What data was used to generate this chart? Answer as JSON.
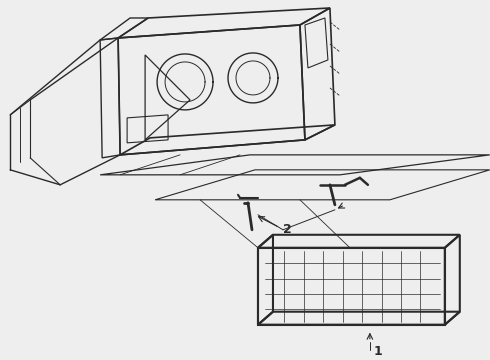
{
  "background_color": "#eeeeee",
  "line_color": "#2a2a2a",
  "label1": "1",
  "label2": "2",
  "fig_width": 4.9,
  "fig_height": 3.6,
  "dpi": 100
}
